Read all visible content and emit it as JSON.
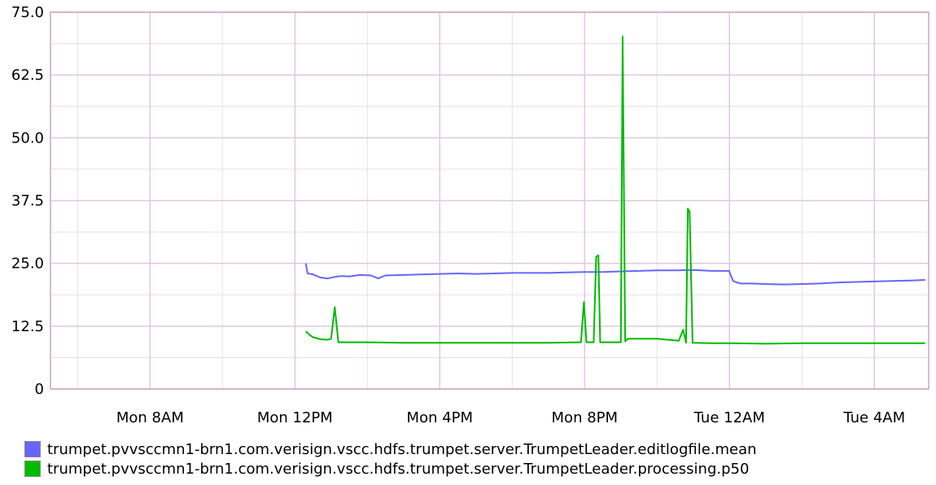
{
  "chart_data": {
    "type": "line",
    "title": "",
    "xlabel": "",
    "ylabel": "",
    "ylim": [
      0,
      75
    ],
    "y_ticks": [
      0,
      12.5,
      25,
      37.5,
      50,
      62.5,
      75
    ],
    "y_tick_labels": [
      "0",
      "12.5",
      "25.0",
      "37.5",
      "50.0",
      "62.5",
      "75.0"
    ],
    "x_unit": "hours since Mon 12AM",
    "xlim": [
      5.25,
      29.5
    ],
    "x_ticks": [
      8,
      12,
      16,
      20,
      24,
      28
    ],
    "x_tick_labels": [
      "Mon  8AM",
      "Mon 12PM",
      "Mon  4PM",
      "Mon  8PM",
      "Tue 12AM",
      "Tue  4AM"
    ],
    "grid": true,
    "legend_position": "bottom-left",
    "series": [
      {
        "name": "trumpet.pvvsccmn1-brn1.com.verisign.vscc.hdfs.trumpet.server.TrumpetLeader.editlogfile.mean",
        "color": "#6666ff",
        "points": [
          [
            12.3,
            25.0
          ],
          [
            12.35,
            23.0
          ],
          [
            12.5,
            22.8
          ],
          [
            12.7,
            22.2
          ],
          [
            12.9,
            22.0
          ],
          [
            13.1,
            22.3
          ],
          [
            13.3,
            22.5
          ],
          [
            13.5,
            22.4
          ],
          [
            13.8,
            22.7
          ],
          [
            14.1,
            22.6
          ],
          [
            14.3,
            22.0
          ],
          [
            14.5,
            22.6
          ],
          [
            15.0,
            22.7
          ],
          [
            15.5,
            22.8
          ],
          [
            16.0,
            22.9
          ],
          [
            16.5,
            23.0
          ],
          [
            17.0,
            22.9
          ],
          [
            17.5,
            23.0
          ],
          [
            18.0,
            23.1
          ],
          [
            18.5,
            23.1
          ],
          [
            19.0,
            23.1
          ],
          [
            19.5,
            23.2
          ],
          [
            20.0,
            23.3
          ],
          [
            20.5,
            23.3
          ],
          [
            21.0,
            23.4
          ],
          [
            21.5,
            23.5
          ],
          [
            22.0,
            23.6
          ],
          [
            22.5,
            23.6
          ],
          [
            23.0,
            23.7
          ],
          [
            23.5,
            23.5
          ],
          [
            23.99,
            23.5
          ],
          [
            24.1,
            21.5
          ],
          [
            24.3,
            21.0
          ],
          [
            24.6,
            21.0
          ],
          [
            25.0,
            20.9
          ],
          [
            25.5,
            20.8
          ],
          [
            26.0,
            20.9
          ],
          [
            26.5,
            21.0
          ],
          [
            27.0,
            21.2
          ],
          [
            27.5,
            21.3
          ],
          [
            28.0,
            21.4
          ],
          [
            28.5,
            21.5
          ],
          [
            29.0,
            21.6
          ],
          [
            29.4,
            21.7
          ]
        ]
      },
      {
        "name": "trumpet.pvvsccmn1-brn1.com.verisign.vscc.hdfs.trumpet.server.TrumpetLeader.processing.p50",
        "color": "#00bb00",
        "points": [
          [
            12.3,
            11.5
          ],
          [
            12.4,
            10.8
          ],
          [
            12.5,
            10.3
          ],
          [
            12.7,
            9.9
          ],
          [
            12.9,
            9.8
          ],
          [
            13.0,
            10.0
          ],
          [
            13.1,
            16.3
          ],
          [
            13.2,
            9.3
          ],
          [
            14.0,
            9.3
          ],
          [
            15.0,
            9.2
          ],
          [
            16.0,
            9.2
          ],
          [
            17.0,
            9.2
          ],
          [
            18.0,
            9.2
          ],
          [
            19.0,
            9.2
          ],
          [
            19.9,
            9.3
          ],
          [
            19.98,
            17.3
          ],
          [
            20.05,
            9.3
          ],
          [
            20.25,
            9.3
          ],
          [
            20.32,
            26.3
          ],
          [
            20.38,
            26.6
          ],
          [
            20.43,
            9.3
          ],
          [
            21.0,
            9.3
          ],
          [
            21.05,
            70.2
          ],
          [
            21.12,
            9.5
          ],
          [
            21.2,
            10.0
          ],
          [
            21.6,
            10.0
          ],
          [
            22.0,
            10.0
          ],
          [
            22.3,
            9.8
          ],
          [
            22.6,
            9.6
          ],
          [
            22.72,
            11.8
          ],
          [
            22.8,
            9.2
          ],
          [
            22.85,
            35.9
          ],
          [
            22.9,
            35.3
          ],
          [
            22.98,
            9.2
          ],
          [
            23.5,
            9.1
          ],
          [
            24.0,
            9.1
          ],
          [
            25.0,
            9.0
          ],
          [
            26.0,
            9.1
          ],
          [
            27.0,
            9.1
          ],
          [
            28.0,
            9.1
          ],
          [
            29.0,
            9.1
          ],
          [
            29.4,
            9.1
          ]
        ]
      }
    ]
  },
  "colors": {
    "background": "#ffffff",
    "grid": "#e0c8e0",
    "axis": "#c9a6c9"
  }
}
